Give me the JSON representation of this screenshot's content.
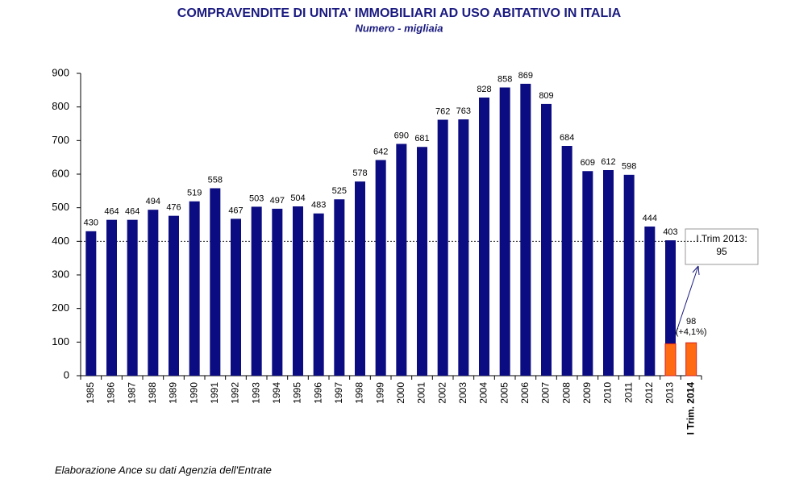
{
  "chart_data": {
    "type": "bar",
    "title": "COMPRAVENDITE DI UNITA' IMMOBILIARI AD USO ABITATIVO IN ITALIA",
    "subtitle": "Numero - migliaia",
    "source": "Elaborazione  Ance su dati  Agenzia dell'Entrate",
    "categories": [
      "1985",
      "1986",
      "1987",
      "1988",
      "1989",
      "1990",
      "1991",
      "1992",
      "1993",
      "1994",
      "1995",
      "1996",
      "1997",
      "1998",
      "1999",
      "2000",
      "2001",
      "2002",
      "2003",
      "2004",
      "2005",
      "2006",
      "2007",
      "2008",
      "2009",
      "2010",
      "2011",
      "2012",
      "2013",
      "I Trim. 2014"
    ],
    "series": [
      {
        "color": "#0b0b82",
        "values": [
          430,
          464,
          464,
          494,
          476,
          519,
          558,
          467,
          503,
          497,
          504,
          483,
          525,
          578,
          642,
          690,
          681,
          762,
          763,
          828,
          858,
          869,
          809,
          684,
          609,
          612,
          598,
          444,
          403,
          null
        ]
      },
      {
        "color": "#ff6a13",
        "values": [
          null,
          null,
          null,
          null,
          null,
          null,
          null,
          null,
          null,
          null,
          null,
          null,
          null,
          null,
          null,
          null,
          null,
          null,
          null,
          null,
          null,
          null,
          null,
          null,
          null,
          null,
          null,
          null,
          95,
          98
        ]
      }
    ],
    "annotations": {
      "trim_2013": "I Trim 2013:",
      "change_2014": "(+4,1%)"
    },
    "reference_line": 400,
    "ylim": [
      0,
      900
    ],
    "yticks": [
      0,
      100,
      200,
      300,
      400,
      500,
      600,
      700,
      800,
      900
    ],
    "grid": false
  }
}
